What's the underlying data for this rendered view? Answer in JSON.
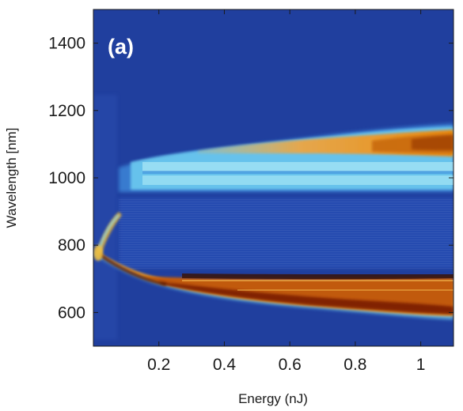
{
  "chart_data": {
    "type": "heatmap",
    "panel_label": "(a)",
    "xlabel": "Energy (nJ)",
    "ylabel": "Wavelength [nm]",
    "xlim": [
      0.0,
      1.1
    ],
    "ylim": [
      500,
      1500
    ],
    "x_ticks": [
      0.2,
      0.4,
      0.6,
      0.8,
      1
    ],
    "x_tick_labels": [
      "0.2",
      "0.4",
      "0.6",
      "0.8",
      "1"
    ],
    "y_ticks": [
      600,
      800,
      1000,
      1200,
      1400
    ],
    "y_tick_labels": [
      "600",
      "800",
      "1000",
      "1200",
      "1400"
    ],
    "colormap": [
      "#1f3fa0",
      "#2a62c8",
      "#7fd6f0",
      "#f0a020",
      "#7a1a00"
    ],
    "background_color": "#203f9e",
    "features": [
      {
        "name": "input pulse",
        "energy": 0.01,
        "wavelength": 800
      },
      {
        "name": "blue-shifted branch",
        "energy": [
          0.02,
          0.05,
          0.1,
          0.2,
          0.4,
          0.6,
          0.8,
          1.1
        ],
        "wavelength": [
          770,
          735,
          710,
          680,
          640,
          615,
          600,
          585
        ]
      },
      {
        "name": "red-shifted band lower edge",
        "energy": [
          0.15,
          0.4,
          1.1
        ],
        "wavelength": [
          960,
          960,
          960
        ]
      },
      {
        "name": "red-shifted band upper edge",
        "energy": [
          0.15,
          0.4,
          0.8,
          1.1
        ],
        "wavelength": [
          1070,
          1085,
          1120,
          1140
        ]
      }
    ]
  }
}
